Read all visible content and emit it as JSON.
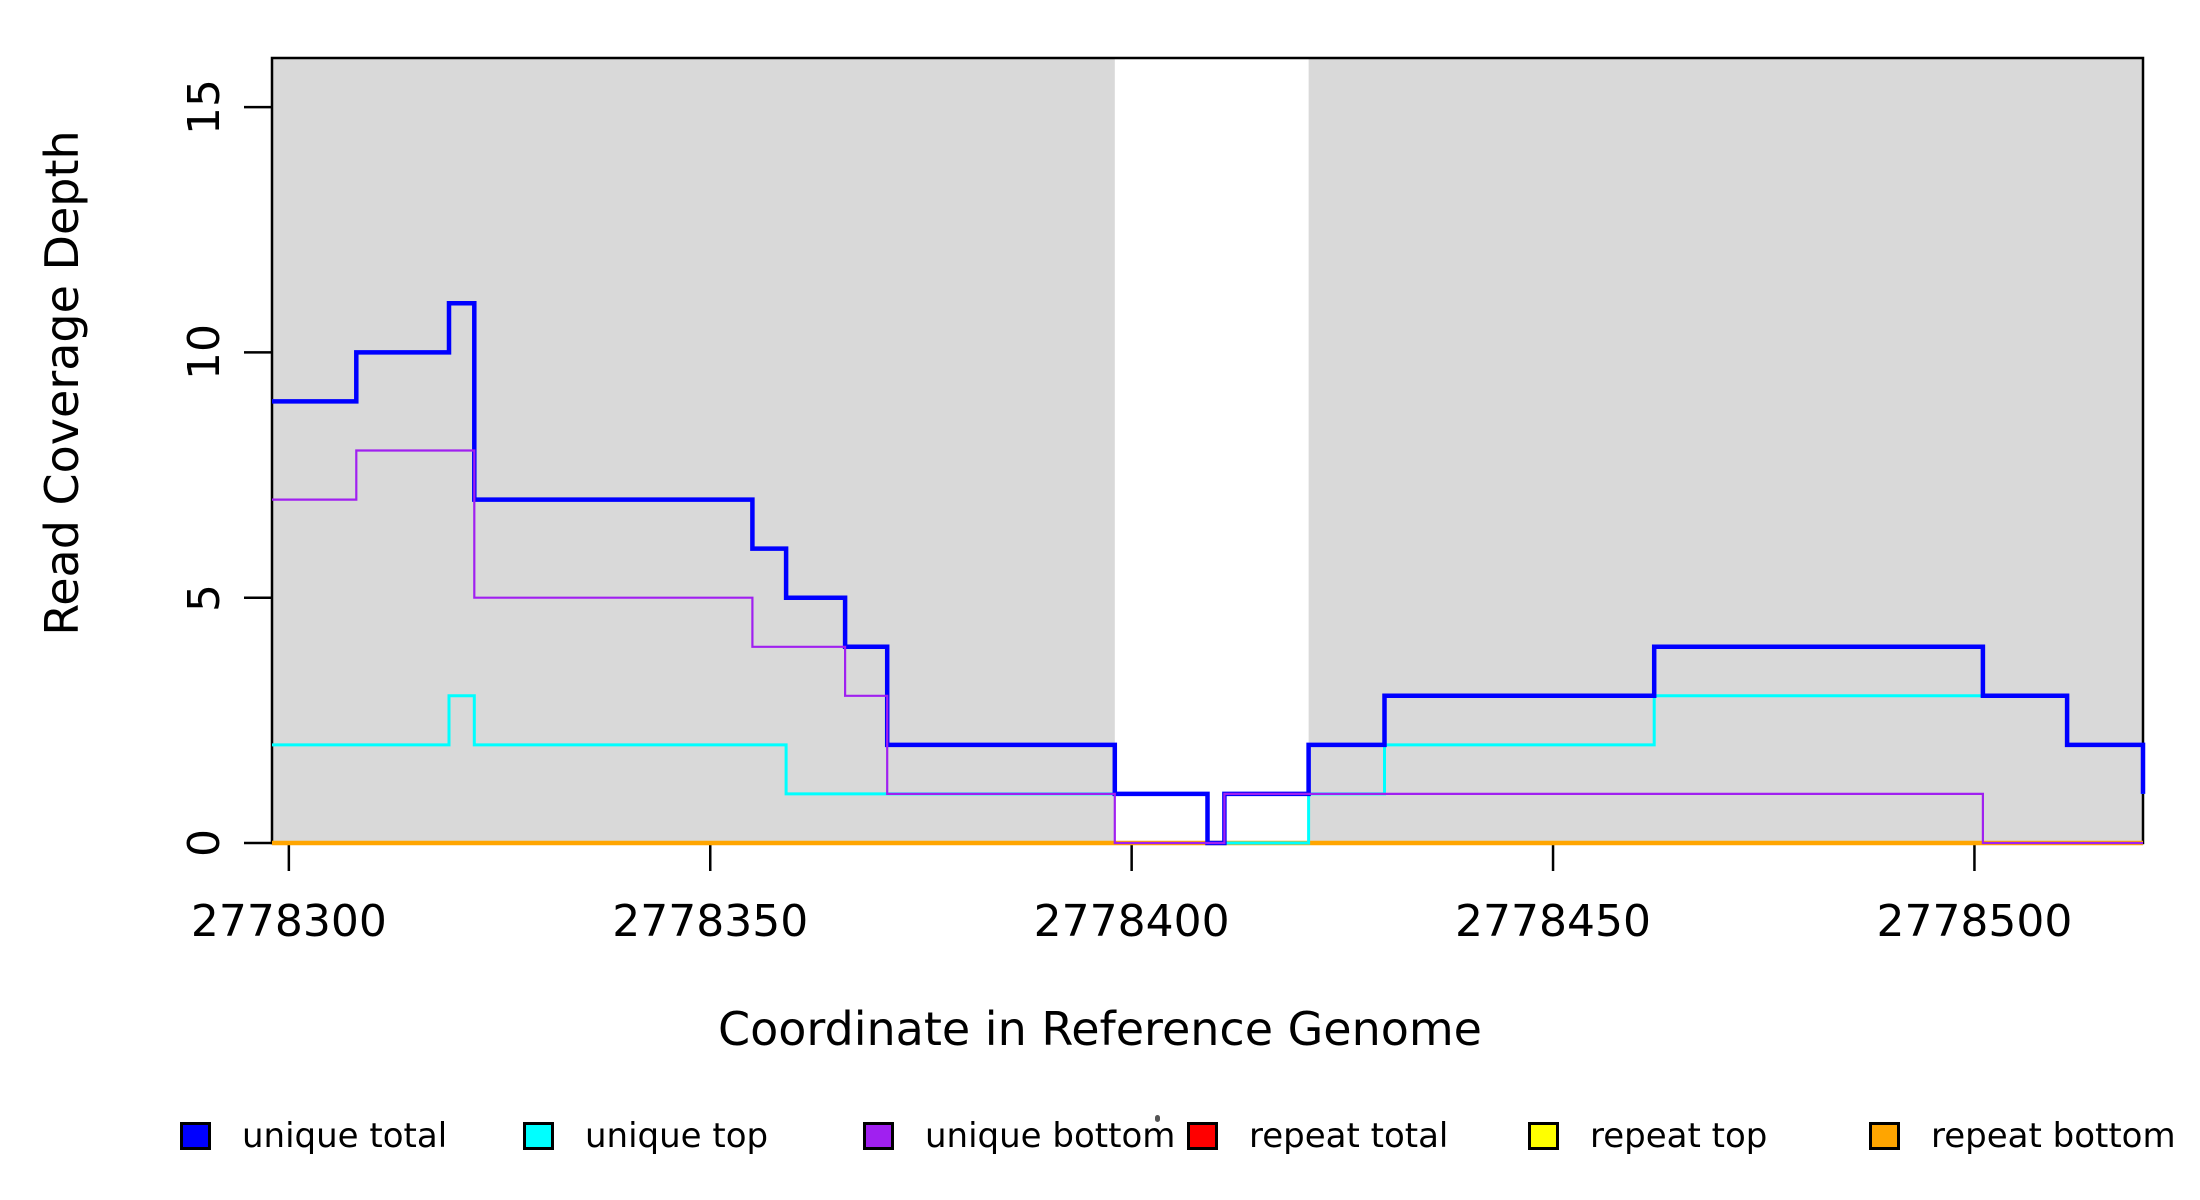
{
  "chart_data": {
    "type": "line",
    "subtype": "step-coverage-plot",
    "title": "",
    "xlabel": "Coordinate in Reference Genome",
    "ylabel": "Read Coverage Depth",
    "x_range": [
      2778298,
      2778520
    ],
    "y_range": [
      0,
      16
    ],
    "x_ticks": [
      "2778300",
      "2778350",
      "2778400",
      "2778450",
      "2778500"
    ],
    "x_tick_values": [
      2778300,
      2778350,
      2778400,
      2778450,
      2778500
    ],
    "y_ticks": [
      "0",
      "5",
      "10",
      "15"
    ],
    "y_tick_values": [
      0,
      5,
      10,
      15
    ],
    "grid": false,
    "legend_position": "bottom",
    "plot_background": "#ffffff",
    "shaded_region_color": "#d9d9d9",
    "shaded_regions": [
      {
        "x0": 2778298,
        "x1": 2778398
      },
      {
        "x0": 2778421,
        "x1": 2778520
      }
    ],
    "unshaded_gap": {
      "x0": 2778398,
      "x1": 2778421
    },
    "series": [
      {
        "name": "unique total",
        "color": "#0000ff",
        "line_width": 4.5,
        "steps": [
          [
            2778298,
            9
          ],
          [
            2778308,
            10
          ],
          [
            2778319,
            11
          ],
          [
            2778322,
            7
          ],
          [
            2778355,
            6
          ],
          [
            2778359,
            5
          ],
          [
            2778366,
            4
          ],
          [
            2778371,
            2
          ],
          [
            2778398,
            1
          ],
          [
            2778409,
            0
          ],
          [
            2778411,
            1
          ],
          [
            2778421,
            2
          ],
          [
            2778430,
            3
          ],
          [
            2778462,
            4
          ],
          [
            2778501,
            3
          ],
          [
            2778511,
            2
          ],
          [
            2778520,
            1
          ]
        ]
      },
      {
        "name": "unique top",
        "color": "#00ffff",
        "line_width": 3,
        "steps": [
          [
            2778298,
            2
          ],
          [
            2778319,
            3
          ],
          [
            2778322,
            2
          ],
          [
            2778359,
            1
          ],
          [
            2778409,
            0
          ],
          [
            2778421,
            1
          ],
          [
            2778430,
            2
          ],
          [
            2778462,
            3
          ],
          [
            2778511,
            2
          ],
          [
            2778520,
            1
          ]
        ]
      },
      {
        "name": "unique bottom",
        "color": "#a020f0",
        "line_width": 2.2,
        "steps": [
          [
            2778298,
            7
          ],
          [
            2778308,
            8
          ],
          [
            2778322,
            5
          ],
          [
            2778355,
            4
          ],
          [
            2778366,
            3
          ],
          [
            2778371,
            1
          ],
          [
            2778398,
            0
          ],
          [
            2778411,
            1
          ],
          [
            2778501,
            0
          ]
        ]
      },
      {
        "name": "repeat total",
        "color": "#ff0000",
        "line_width": 4,
        "steps": [
          [
            2778298,
            0
          ]
        ]
      },
      {
        "name": "repeat top",
        "color": "#ffff00",
        "line_width": 4,
        "steps": [
          [
            2778298,
            0
          ]
        ]
      },
      {
        "name": "repeat bottom",
        "color": "#ffa500",
        "line_width": 4.5,
        "steps": [
          [
            2778298,
            0
          ]
        ]
      }
    ],
    "draw_order": [
      "repeat total",
      "repeat top",
      "repeat bottom",
      "unique top",
      "unique total",
      "unique bottom"
    ],
    "axis_color": "#000000"
  }
}
